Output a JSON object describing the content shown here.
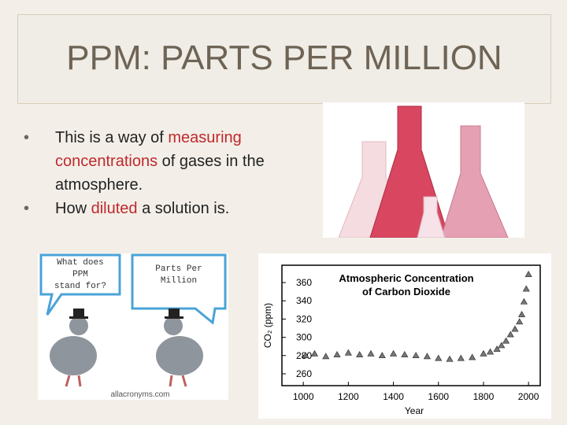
{
  "header": {
    "title": "PPM:  PARTS PER MILLION"
  },
  "bullets": [
    {
      "segments": [
        {
          "text": "This is a way of "
        },
        {
          "text": "measuring concentrations",
          "em": true
        },
        {
          "text": " of gases in the atmosphere."
        }
      ]
    },
    {
      "segments": [
        {
          "text": "How "
        },
        {
          "text": "diluted",
          "em": true
        },
        {
          "text": " a solution is."
        }
      ]
    }
  ],
  "cartoon": {
    "bubble_left": [
      "What does",
      "PPM",
      "stand for?"
    ],
    "bubble_right": [
      "Parts Per",
      "Million"
    ],
    "credit": "allacronyms.com"
  },
  "chart_data": {
    "type": "scatter",
    "title": [
      "Atmospheric Concentration",
      "of Carbon Dioxide"
    ],
    "x_label": "Year",
    "y_label": "CO₂ (ppm)",
    "xlim": [
      905,
      2052
    ],
    "ylim": [
      247,
      379
    ],
    "xticks": [
      1000,
      1200,
      1400,
      1600,
      1800,
      2000
    ],
    "yticks": [
      260,
      280,
      300,
      320,
      340,
      360
    ],
    "series": [
      {
        "color": "#777777",
        "x": [
          1010,
          1050,
          1100,
          1150,
          1200,
          1250,
          1300,
          1350,
          1400,
          1450,
          1500,
          1550,
          1600,
          1650,
          1700,
          1750,
          1800,
          1830,
          1860,
          1880,
          1900,
          1920,
          1940,
          1960,
          1970,
          1980,
          1990,
          2000
        ],
        "values": [
          280,
          282,
          279,
          281,
          283,
          281,
          282,
          280,
          282,
          281,
          280,
          279,
          277,
          276,
          277,
          278,
          282,
          284,
          287,
          291,
          296,
          303,
          309,
          317,
          325,
          339,
          353,
          369
        ]
      }
    ]
  }
}
